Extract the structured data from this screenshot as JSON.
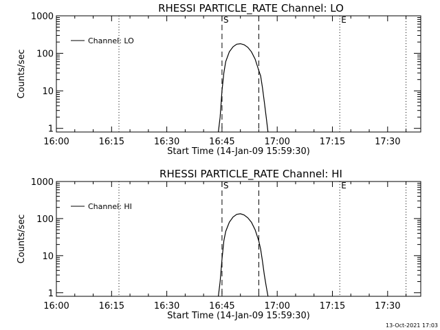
{
  "footer": {
    "timestamp": "13-Oct-2021 17:03"
  },
  "chart_data": [
    {
      "type": "line",
      "title": "RHESSI PARTICLE_RATE Channel: LO",
      "xlabel": "Start Time (14-Jan-09 15:59:30)",
      "ylabel": "Counts/sec",
      "yscale": "log",
      "ylim": [
        0.8,
        1000
      ],
      "xlim": [
        "16:00",
        "17:39"
      ],
      "xticks": [
        "16:00",
        "16:15",
        "16:30",
        "16:45",
        "17:00",
        "17:15",
        "17:30"
      ],
      "yticks": [
        "1",
        "10",
        "100",
        "1000"
      ],
      "legend": {
        "label": "Channel: LO",
        "placement": "top-left"
      },
      "dotted_lines": [
        "16:17",
        "17:17",
        "17:35"
      ],
      "dashed_lines": [
        "16:45",
        "16:55"
      ],
      "markers": [
        {
          "label": "S",
          "at": "16:45"
        },
        {
          "label": "E",
          "at": "17:17"
        }
      ],
      "series": [
        {
          "name": "Channel: LO",
          "x": [
            "16:44",
            "16:44.5",
            "16:45",
            "16:45.5",
            "16:46",
            "16:47",
            "16:48",
            "16:49",
            "16:50",
            "16:51",
            "16:52",
            "16:53",
            "16:54",
            "16:55",
            "16:55.5",
            "16:56",
            "16:56.5",
            "16:57",
            "16:57.5"
          ],
          "values": [
            0.8,
            2,
            10,
            30,
            60,
            110,
            150,
            175,
            180,
            170,
            145,
            110,
            70,
            35,
            25,
            12,
            5,
            2,
            0.8
          ]
        }
      ]
    },
    {
      "type": "line",
      "title": "RHESSI PARTICLE_RATE Channel: HI",
      "xlabel": "Start Time (14-Jan-09 15:59:30)",
      "ylabel": "Counts/sec",
      "yscale": "log",
      "ylim": [
        0.8,
        1000
      ],
      "xlim": [
        "16:00",
        "17:39"
      ],
      "xticks": [
        "16:00",
        "16:15",
        "16:30",
        "16:45",
        "17:00",
        "17:15",
        "17:30"
      ],
      "yticks": [
        "1",
        "10",
        "100",
        "1000"
      ],
      "legend": {
        "label": "Channel: HI",
        "placement": "top-left"
      },
      "dotted_lines": [
        "16:17",
        "17:17",
        "17:35"
      ],
      "dashed_lines": [
        "16:45",
        "16:55"
      ],
      "markers": [
        {
          "label": "S",
          "at": "16:45"
        },
        {
          "label": "E",
          "at": "17:17"
        }
      ],
      "series": [
        {
          "name": "Channel: HI",
          "x": [
            "16:44",
            "16:44.5",
            "16:45",
            "16:45.5",
            "16:46",
            "16:47",
            "16:48",
            "16:49",
            "16:50",
            "16:51",
            "16:52",
            "16:53",
            "16:54",
            "16:55",
            "16:55.5",
            "16:56",
            "16:56.5",
            "16:57",
            "16:57.5"
          ],
          "values": [
            0.8,
            2,
            8,
            25,
            45,
            80,
            110,
            130,
            135,
            125,
            105,
            80,
            50,
            25,
            15,
            7,
            3,
            1.5,
            0.8
          ]
        }
      ]
    }
  ]
}
